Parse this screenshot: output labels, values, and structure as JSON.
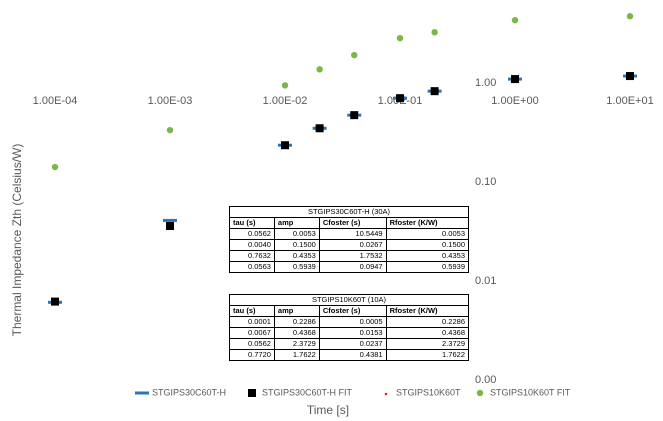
{
  "chart_data": {
    "type": "scatter",
    "x_label": "Time [s]",
    "y_label": "Thermal Impedance Zth (Celsius/W)",
    "log_x": true,
    "log_y": true,
    "xlim": [
      0.0001,
      10
    ],
    "ylim": [
      0.001,
      5
    ],
    "xticks": [
      {
        "value": 0.0001,
        "label": "1.00E-04"
      },
      {
        "value": 0.001,
        "label": "1.00E-03"
      },
      {
        "value": 0.01,
        "label": "1.00E-02"
      },
      {
        "value": 0.1,
        "label": "1.00E-01"
      },
      {
        "value": 1,
        "label": "1.00E+00"
      },
      {
        "value": 10,
        "label": "1.00E+01"
      }
    ],
    "yticks": [
      {
        "value": 1,
        "label": "1.00"
      },
      {
        "value": 0.1,
        "label": "0.10"
      },
      {
        "value": 0.01,
        "label": "0.01"
      },
      {
        "value": 0.001,
        "label": "0.00"
      }
    ],
    "x": [
      0.0001,
      0.001,
      0.01,
      0.02,
      0.04,
      0.1,
      0.2,
      1,
      10
    ],
    "series": [
      {
        "name": "STGIPS30C60T-H",
        "color": "#2e75b6",
        "marker": "dash",
        "values": [
          0.0061,
          0.041,
          0.236,
          0.35,
          0.475,
          0.705,
          0.83,
          1.1,
          1.18
        ]
      },
      {
        "name": "STGIPS30C60T-H FIT",
        "color": "#000000",
        "marker": "square",
        "values": [
          0.0062,
          0.036,
          0.236,
          0.35,
          0.475,
          0.705,
          0.83,
          1.1,
          1.18
        ]
      },
      {
        "name": "STGIPS10K60T",
        "color": "#e0201b",
        "marker": "dot",
        "values": [
          0.142,
          0.335,
          0.95,
          1.38,
          1.92,
          2.85,
          3.27,
          4.33,
          4.75
        ]
      },
      {
        "name": "STGIPS10K60T FIT",
        "color": "#7ab648",
        "marker": "circle",
        "values": [
          0.142,
          0.335,
          0.95,
          1.38,
          1.92,
          2.85,
          3.27,
          4.33,
          4.75
        ]
      }
    ]
  },
  "tables": [
    {
      "title": "STGIPS30C60T-H (30A)",
      "header": [
        "tau (s)",
        "amp",
        "Cfoster (s)",
        "Rfoster (K/W)"
      ],
      "rows": [
        [
          "0.0562",
          "0.0053",
          "10.5449",
          "0.0053"
        ],
        [
          "0.0040",
          "0.1500",
          "0.0267",
          "0.1500"
        ],
        [
          "0.7632",
          "0.4353",
          "1.7532",
          "0.4353"
        ],
        [
          "0.0563",
          "0.5939",
          "0.0947",
          "0.5939"
        ]
      ]
    },
    {
      "title": "STGIPS10K60T (10A)",
      "header": [
        "tau (s)",
        "amp",
        "Cfoster (s)",
        "Rfoster (K/W)"
      ],
      "rows": [
        [
          "0.0001",
          "0.2286",
          "0.0005",
          "0.2286"
        ],
        [
          "0.0067",
          "0.4368",
          "0.0153",
          "0.4368"
        ],
        [
          "0.0562",
          "2.3729",
          "0.0237",
          "2.3729"
        ],
        [
          "0.7720",
          "1.7622",
          "0.4381",
          "1.7622"
        ]
      ]
    }
  ]
}
